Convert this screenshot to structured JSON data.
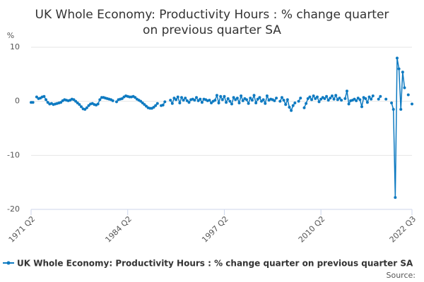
{
  "chart_data": {
    "type": "line",
    "title": "UK Whole Economy: Productivity Hours : % change quarter on previous quarter SA",
    "y_label": "%",
    "source_label": "Source:",
    "categories": [
      "1971 Q2",
      null,
      null,
      null,
      null,
      null,
      null,
      null,
      null,
      null,
      null,
      null,
      null,
      null,
      null,
      null,
      null,
      null,
      null,
      null,
      null,
      null,
      null,
      null,
      null,
      null,
      null,
      null,
      null,
      null,
      null,
      null,
      null,
      null,
      null,
      null,
      null,
      null,
      null,
      null,
      null,
      null,
      null,
      null,
      null,
      null,
      null,
      null,
      null,
      null,
      null,
      null,
      "1984 Q2",
      null,
      null,
      null,
      null,
      null,
      null,
      null,
      null,
      null,
      null,
      null,
      null,
      null,
      null,
      null,
      null,
      null,
      null,
      null,
      null,
      null,
      null,
      null,
      null,
      null,
      null,
      null,
      null,
      null,
      null,
      null,
      null,
      null,
      null,
      null,
      null,
      null,
      null,
      null,
      null,
      null,
      null,
      null,
      null,
      null,
      null,
      null,
      null,
      null,
      null,
      null,
      "1997 Q2",
      null,
      null,
      null,
      null,
      null,
      null,
      null,
      null,
      null,
      null,
      null,
      null,
      null,
      null,
      null,
      null,
      null,
      null,
      null,
      null,
      null,
      null,
      null,
      null,
      null,
      null,
      null,
      null,
      null,
      null,
      null,
      null,
      null,
      null,
      null,
      null,
      null,
      null,
      null,
      null,
      null,
      null,
      null,
      null,
      null,
      null,
      null,
      null,
      null,
      null,
      null,
      "2010 Q2",
      null,
      null,
      null,
      null,
      null,
      null,
      null,
      null,
      null,
      null,
      null,
      null,
      null,
      null,
      null,
      null,
      null,
      null,
      null,
      null,
      null,
      null,
      null,
      null,
      null,
      null,
      null,
      null,
      null,
      null,
      null,
      null,
      null,
      null,
      null,
      null,
      null,
      null,
      null,
      null,
      null,
      null,
      null,
      null,
      null,
      null,
      null,
      null,
      "2022 Q3"
    ],
    "series": [
      {
        "name": "UK Whole Economy: Productivity Hours : % change quarter on previous quarter SA",
        "color": "#0e7ac1",
        "values": [
          -0.2,
          -0.2,
          null,
          0.8,
          0.5,
          0.6,
          0.8,
          0.9,
          0.3,
          -0.2,
          -0.5,
          -0.4,
          -0.6,
          -0.5,
          -0.4,
          -0.3,
          -0.2,
          0.1,
          0.3,
          0.2,
          0.1,
          0.2,
          0.4,
          0.3,
          0.0,
          -0.3,
          -0.6,
          -1.0,
          -1.4,
          -1.5,
          -1.2,
          -0.8,
          -0.5,
          -0.4,
          -0.6,
          -0.7,
          -0.5,
          0.3,
          0.7,
          0.7,
          0.6,
          0.5,
          0.4,
          0.3,
          0.1,
          null,
          -0.1,
          0.3,
          0.4,
          0.5,
          0.8,
          1.0,
          0.9,
          0.8,
          0.8,
          0.9,
          0.7,
          0.4,
          0.2,
          0.0,
          -0.3,
          -0.6,
          -0.9,
          -1.2,
          -1.3,
          -1.3,
          -1.1,
          -0.8,
          -0.4,
          null,
          -0.8,
          -0.7,
          -0.1,
          null,
          null,
          0.2,
          -0.4,
          0.6,
          0.3,
          0.8,
          -0.3,
          0.7,
          0.2,
          0.6,
          0.1,
          -0.2,
          0.3,
          0.4,
          0.2,
          0.7,
          0.1,
          0.4,
          -0.2,
          0.4,
          0.3,
          0.1,
          0.2,
          -0.3,
          0.0,
          0.2,
          1.1,
          -0.3,
          0.9,
          0.3,
          0.9,
          -0.2,
          0.5,
          0.0,
          -0.5,
          0.7,
          0.3,
          0.6,
          -0.3,
          1.0,
          0.1,
          0.5,
          0.3,
          -0.4,
          0.6,
          0.2,
          1.1,
          -0.3,
          0.4,
          0.7,
          0.0,
          0.3,
          -0.4,
          1.0,
          0.2,
          0.4,
          0.3,
          0.1,
          0.6,
          null,
          0.0,
          0.7,
          0.2,
          -0.6,
          0.3,
          -1.1,
          -1.7,
          -0.8,
          -0.3,
          null,
          0.0,
          0.6,
          null,
          -1.2,
          -0.4,
          0.5,
          0.8,
          0.3,
          1.0,
          0.5,
          0.8,
          -0.1,
          0.4,
          0.7,
          0.5,
          0.9,
          0.2,
          0.6,
          1.0,
          0.4,
          1.1,
          0.3,
          0.6,
          0.2,
          null,
          0.5,
          1.9,
          -0.5,
          0.1,
          0.2,
          0.4,
          0.1,
          0.6,
          0.3,
          -1.0,
          0.7,
          0.5,
          -0.2,
          0.8,
          0.4,
          1.0,
          null,
          null,
          0.4,
          0.9,
          null,
          null,
          0.4,
          null,
          null,
          -0.3,
          -1.5,
          -17.8,
          8.0,
          6.0,
          -1.5,
          5.4,
          2.5,
          null,
          1.2,
          null,
          -0.5
        ]
      }
    ],
    "ylim": [
      -20,
      10
    ],
    "yticks": [
      -20,
      -10,
      0,
      10
    ],
    "grid": true
  }
}
